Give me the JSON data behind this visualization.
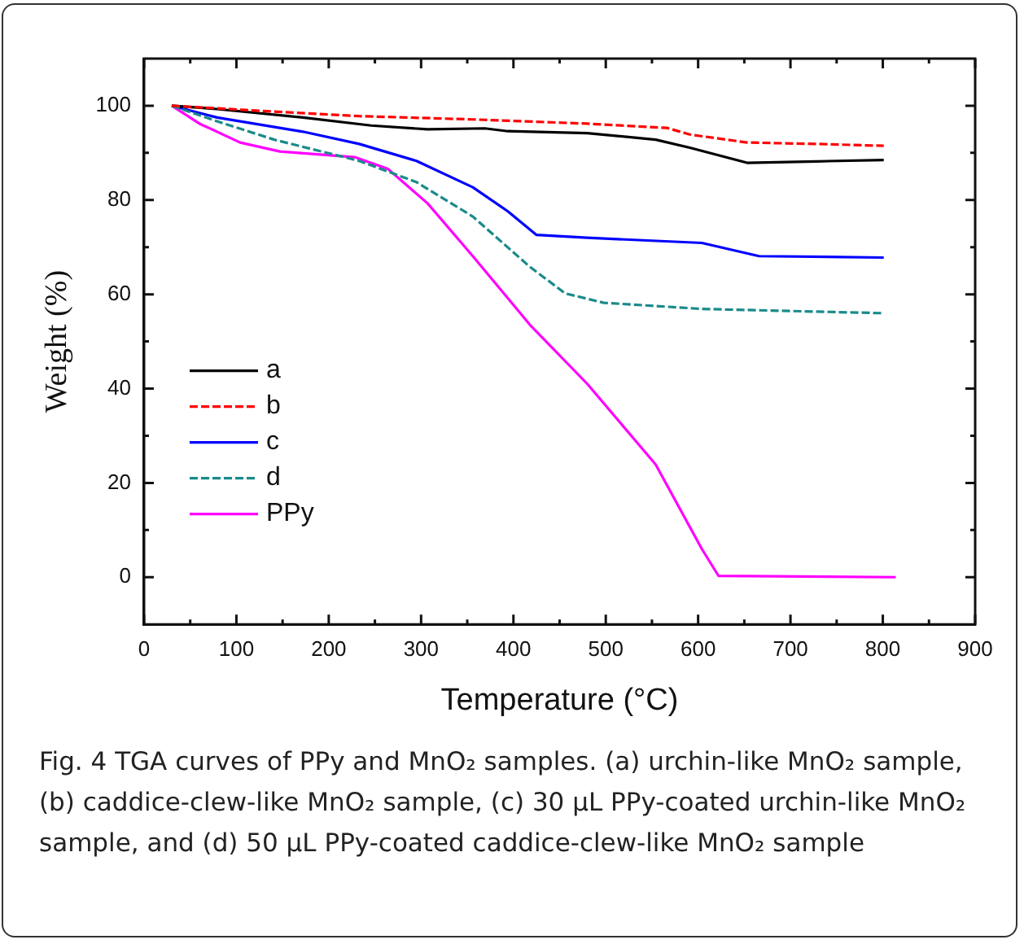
{
  "chart_data": {
    "type": "line",
    "xlabel": "Temperature (°C)",
    "ylabel": "Weight (%)",
    "xlim": [
      0,
      900
    ],
    "ylim": [
      -10,
      110
    ],
    "xticks": [
      0,
      {
        "value": 50,
        "label": null
      },
      100,
      {
        "value": 150,
        "label": null
      },
      200,
      {
        "value": 250,
        "label": null
      },
      300,
      {
        "value": 350,
        "label": null
      },
      400,
      {
        "value": 450,
        "label": null
      },
      500,
      {
        "value": 550,
        "label": null
      },
      600,
      {
        "value": 650,
        "label": null
      },
      700,
      {
        "value": 750,
        "label": null
      },
      800,
      {
        "value": 850,
        "label": null
      },
      900
    ],
    "yticks": [
      0,
      {
        "value": 10,
        "label": null
      },
      20,
      {
        "value": 30,
        "label": null
      },
      40,
      {
        "value": 50,
        "label": null
      },
      60,
      {
        "value": 70,
        "label": null
      },
      80,
      {
        "value": 90,
        "label": null
      },
      100
    ],
    "grid": false,
    "legend": "center left",
    "marker": "none",
    "series": [
      {
        "name": "a",
        "color": "#000000",
        "line_style": "solid",
        "x": [
          30,
          79,
          172,
          246,
          307,
          369,
          394,
          480,
          554,
          591,
          653,
          728,
          801
        ],
        "values": [
          100,
          99.3,
          97.5,
          95.8,
          95,
          95.2,
          94.6,
          94.2,
          92.8,
          91.1,
          87.9,
          88.2,
          88.5
        ]
      },
      {
        "name": "b",
        "color": "#ff0000",
        "line_style": "dashed",
        "x": [
          30,
          110,
          233,
          356,
          480,
          566,
          591,
          653,
          728,
          801
        ],
        "values": [
          100,
          99.1,
          97.8,
          97.1,
          96.2,
          95.3,
          93.9,
          92.2,
          91.9,
          91.5
        ]
      },
      {
        "name": "c",
        "color": "#0000ff",
        "line_style": "solid",
        "x": [
          30,
          79,
          172,
          233,
          295,
          356,
          394,
          425,
          480,
          604,
          666,
          801
        ],
        "values": [
          100,
          97.5,
          94.5,
          91.9,
          88.3,
          82.7,
          77.6,
          72.6,
          72,
          70.9,
          68.1,
          67.8
        ]
      },
      {
        "name": "d",
        "color": "#1a8a8a",
        "line_style": "dashed",
        "x": [
          30,
          79,
          141,
          233,
          295,
          356,
          418,
          456,
          498,
          604,
          801
        ],
        "values": [
          100,
          96.7,
          92.8,
          88.3,
          83.8,
          76.5,
          65.8,
          60.2,
          58.2,
          56.9,
          56
        ]
      },
      {
        "name": "PPy",
        "color": "#ff00ff",
        "line_style": "solid",
        "x": [
          30,
          60,
          104,
          147,
          228,
          264,
          307,
          356,
          418,
          480,
          554,
          604,
          622,
          814
        ],
        "values": [
          100,
          96.2,
          92.2,
          90.3,
          89.1,
          86.6,
          79.3,
          68.1,
          53.5,
          41,
          23.9,
          6,
          0.3,
          0
        ]
      }
    ],
    "annotations": [
      "Fig. 4 TGA curves of PPy and MnO₂ samples. (a) urchin-like MnO₂ sample, (b) caddice-clew-like MnO₂ sample, (c) 30 µL PPy-coated urchin-like MnO₂ sample, and (d) 50 µL PPy-coated caddice-clew-like MnO₂ sample"
    ]
  }
}
